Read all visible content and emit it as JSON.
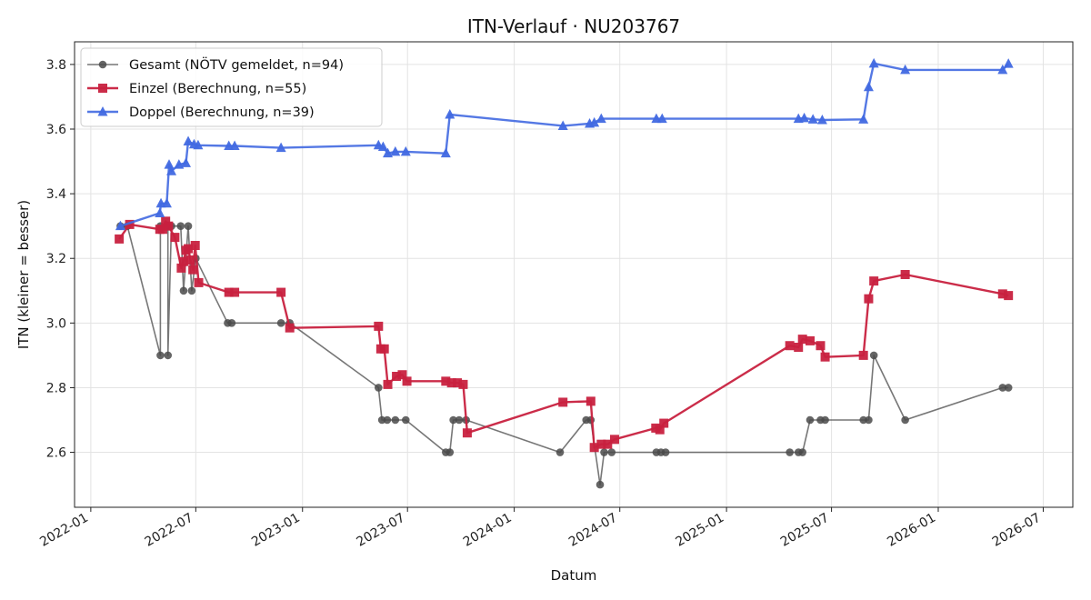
{
  "chart_data": {
    "type": "line",
    "title": "ITN-Verlauf · NU203767",
    "xlabel": "Datum",
    "ylabel": "ITN  (kleiner = besser)",
    "x_is_date": true,
    "xlim": [
      "2021-12-04",
      "2026-08-21"
    ],
    "ylim": [
      2.43,
      3.87
    ],
    "x_ticks": [
      "2022-01",
      "2022-07",
      "2023-01",
      "2023-07",
      "2024-01",
      "2024-07",
      "2025-01",
      "2025-07",
      "2026-01",
      "2026-07"
    ],
    "y_ticks": [
      2.6,
      2.8,
      3.0,
      3.2,
      3.4,
      3.6,
      3.8
    ],
    "y_tick_labels": [
      "2.6",
      "2.8",
      "3.0",
      "3.2",
      "3.4",
      "3.6",
      "3.8"
    ],
    "grid": true,
    "legend_position": "top-left",
    "series": [
      {
        "name": "Gesamt (NÖTV gemeldet, n=94)",
        "color": "#4a4a4a",
        "marker": "circle",
        "points": [
          [
            "2022-02-21",
            3.3
          ],
          [
            "2022-03-05",
            3.3
          ],
          [
            "2022-05-01",
            2.9
          ],
          [
            "2022-05-01",
            3.3
          ],
          [
            "2022-05-14",
            3.3
          ],
          [
            "2022-05-14",
            2.9
          ],
          [
            "2022-05-20",
            3.3
          ],
          [
            "2022-06-05",
            3.3
          ],
          [
            "2022-06-10",
            3.1
          ],
          [
            "2022-06-18",
            3.3
          ],
          [
            "2022-06-24",
            3.1
          ],
          [
            "2022-07-01",
            3.2
          ],
          [
            "2022-08-25",
            3.0
          ],
          [
            "2022-09-01",
            3.0
          ],
          [
            "2022-11-25",
            3.0
          ],
          [
            "2022-12-10",
            3.0
          ],
          [
            "2023-05-12",
            2.8
          ],
          [
            "2023-05-18",
            2.7
          ],
          [
            "2023-05-27",
            2.7
          ],
          [
            "2023-06-10",
            2.7
          ],
          [
            "2023-06-28",
            2.7
          ],
          [
            "2023-09-05",
            2.6
          ],
          [
            "2023-09-12",
            2.6
          ],
          [
            "2023-09-18",
            2.7
          ],
          [
            "2023-09-28",
            2.7
          ],
          [
            "2023-10-10",
            2.7
          ],
          [
            "2024-03-20",
            2.6
          ],
          [
            "2024-05-04",
            2.7
          ],
          [
            "2024-05-12",
            2.7
          ],
          [
            "2024-05-28",
            2.5
          ],
          [
            "2024-06-04",
            2.6
          ],
          [
            "2024-06-17",
            2.6
          ],
          [
            "2024-09-02",
            2.6
          ],
          [
            "2024-09-10",
            2.6
          ],
          [
            "2024-09-18",
            2.6
          ],
          [
            "2025-04-20",
            2.6
          ],
          [
            "2025-05-05",
            2.6
          ],
          [
            "2025-05-12",
            2.6
          ],
          [
            "2025-05-25",
            2.7
          ],
          [
            "2025-06-12",
            2.7
          ],
          [
            "2025-06-20",
            2.7
          ],
          [
            "2025-08-25",
            2.7
          ],
          [
            "2025-09-03",
            2.7
          ],
          [
            "2025-09-12",
            2.9
          ],
          [
            "2025-11-05",
            2.7
          ],
          [
            "2026-04-22",
            2.8
          ],
          [
            "2026-05-02",
            2.8
          ]
        ]
      },
      {
        "name": "Einzel (Berechnung, n=55)",
        "color": "#c8213f",
        "marker": "square",
        "points": [
          [
            "2022-02-19",
            3.26
          ],
          [
            "2022-03-09",
            3.305
          ],
          [
            "2022-04-30",
            3.29
          ],
          [
            "2022-05-05",
            3.29
          ],
          [
            "2022-05-10",
            3.315
          ],
          [
            "2022-05-15",
            3.3
          ],
          [
            "2022-05-26",
            3.265
          ],
          [
            "2022-06-06",
            3.17
          ],
          [
            "2022-06-10",
            3.19
          ],
          [
            "2022-06-14",
            3.225
          ],
          [
            "2022-06-18",
            3.23
          ],
          [
            "2022-06-22",
            3.195
          ],
          [
            "2022-06-26",
            3.165
          ],
          [
            "2022-06-30",
            3.24
          ],
          [
            "2022-07-06",
            3.125
          ],
          [
            "2022-08-27",
            3.095
          ],
          [
            "2022-09-06",
            3.095
          ],
          [
            "2022-11-25",
            3.095
          ],
          [
            "2022-12-10",
            2.985
          ],
          [
            "2023-05-12",
            2.99
          ],
          [
            "2023-05-16",
            2.92
          ],
          [
            "2023-05-22",
            2.92
          ],
          [
            "2023-05-28",
            2.81
          ],
          [
            "2023-06-12",
            2.835
          ],
          [
            "2023-06-22",
            2.84
          ],
          [
            "2023-06-30",
            2.82
          ],
          [
            "2023-09-05",
            2.82
          ],
          [
            "2023-09-15",
            2.815
          ],
          [
            "2023-09-25",
            2.815
          ],
          [
            "2023-10-05",
            2.81
          ],
          [
            "2023-10-12",
            2.66
          ],
          [
            "2024-03-25",
            2.755
          ],
          [
            "2024-05-12",
            2.758
          ],
          [
            "2024-05-18",
            2.615
          ],
          [
            "2024-05-30",
            2.625
          ],
          [
            "2024-06-10",
            2.625
          ],
          [
            "2024-06-22",
            2.64
          ],
          [
            "2024-09-01",
            2.675
          ],
          [
            "2024-09-08",
            2.67
          ],
          [
            "2024-09-15",
            2.69
          ],
          [
            "2025-04-20",
            2.93
          ],
          [
            "2025-05-05",
            2.925
          ],
          [
            "2025-05-12",
            2.95
          ],
          [
            "2025-05-25",
            2.945
          ],
          [
            "2025-06-12",
            2.93
          ],
          [
            "2025-06-20",
            2.895
          ],
          [
            "2025-08-25",
            2.9
          ],
          [
            "2025-09-03",
            3.075
          ],
          [
            "2025-09-12",
            3.13
          ],
          [
            "2025-11-05",
            3.15
          ],
          [
            "2026-04-22",
            3.09
          ],
          [
            "2026-05-02",
            3.085
          ]
        ]
      },
      {
        "name": "Doppel (Berechnung, n=39)",
        "color": "#4169e1",
        "marker": "triangle",
        "points": [
          [
            "2022-02-21",
            3.3
          ],
          [
            "2022-04-30",
            3.34
          ],
          [
            "2022-05-02",
            3.37
          ],
          [
            "2022-05-12",
            3.37
          ],
          [
            "2022-05-16",
            3.49
          ],
          [
            "2022-05-20",
            3.47
          ],
          [
            "2022-06-02",
            3.49
          ],
          [
            "2022-06-14",
            3.495
          ],
          [
            "2022-06-18",
            3.562
          ],
          [
            "2022-06-28",
            3.553
          ],
          [
            "2022-07-05",
            3.55
          ],
          [
            "2022-08-27",
            3.548
          ],
          [
            "2022-09-06",
            3.548
          ],
          [
            "2022-11-25",
            3.542
          ],
          [
            "2023-05-12",
            3.55
          ],
          [
            "2023-05-20",
            3.545
          ],
          [
            "2023-05-28",
            3.525
          ],
          [
            "2023-06-10",
            3.53
          ],
          [
            "2023-06-28",
            3.53
          ],
          [
            "2023-09-05",
            3.525
          ],
          [
            "2023-09-12",
            3.645
          ],
          [
            "2024-03-25",
            3.61
          ],
          [
            "2024-05-10",
            3.617
          ],
          [
            "2024-05-18",
            3.62
          ],
          [
            "2024-05-30",
            3.632
          ],
          [
            "2024-09-02",
            3.632
          ],
          [
            "2024-09-12",
            3.632
          ],
          [
            "2025-05-05",
            3.632
          ],
          [
            "2025-05-15",
            3.634
          ],
          [
            "2025-05-30",
            3.63
          ],
          [
            "2025-06-15",
            3.628
          ],
          [
            "2025-08-25",
            3.63
          ],
          [
            "2025-09-03",
            3.73
          ],
          [
            "2025-09-12",
            3.803
          ],
          [
            "2025-11-05",
            3.783
          ],
          [
            "2026-04-22",
            3.783
          ],
          [
            "2026-05-02",
            3.802
          ]
        ]
      }
    ]
  }
}
